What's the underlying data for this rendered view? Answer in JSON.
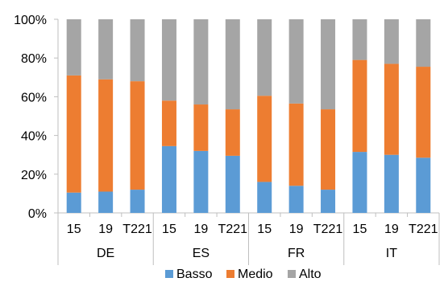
{
  "chart_data": {
    "type": "bar",
    "stacked": true,
    "percent": true,
    "ylim": [
      0,
      100
    ],
    "yticks": [
      "0%",
      "20%",
      "40%",
      "60%",
      "80%",
      "100%"
    ],
    "grid": false,
    "legend_position": "bottom",
    "groups": [
      "DE",
      "ES",
      "FR",
      "IT"
    ],
    "categories": [
      {
        "group": "DE",
        "label": "15"
      },
      {
        "group": "DE",
        "label": "19"
      },
      {
        "group": "DE",
        "label": "T221"
      },
      {
        "group": "ES",
        "label": "15"
      },
      {
        "group": "ES",
        "label": "19"
      },
      {
        "group": "ES",
        "label": "T221"
      },
      {
        "group": "FR",
        "label": "15"
      },
      {
        "group": "FR",
        "label": "19"
      },
      {
        "group": "FR",
        "label": "T221"
      },
      {
        "group": "IT",
        "label": "15"
      },
      {
        "group": "IT",
        "label": "19"
      },
      {
        "group": "IT",
        "label": "T221"
      }
    ],
    "series": [
      {
        "name": "Basso",
        "color": "#5B9BD5",
        "values": [
          10.5,
          11,
          12,
          34.5,
          32,
          29.5,
          16,
          14,
          12,
          31.5,
          30,
          28.5
        ]
      },
      {
        "name": "Medio",
        "color": "#ED7D31",
        "values": [
          60.5,
          58,
          56,
          23.5,
          24,
          24,
          44.5,
          42.5,
          41.5,
          47.5,
          47,
          47
        ]
      },
      {
        "name": "Alto",
        "color": "#A5A5A5",
        "values": [
          29,
          31,
          32,
          42,
          44,
          46.5,
          39.5,
          43.5,
          46.5,
          21,
          23,
          24.5
        ]
      }
    ]
  }
}
